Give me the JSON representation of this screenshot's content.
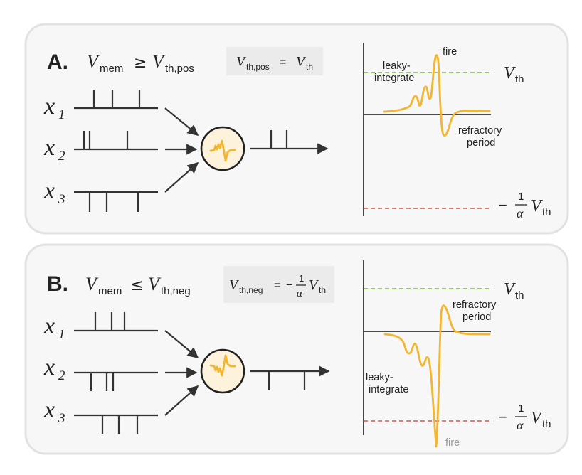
{
  "panel_a": {
    "letter": "A.",
    "condition": {
      "v": "V",
      "v_sub": "mem",
      "op": "≥",
      "rhs": "V",
      "rhs_sub": "th,pos"
    },
    "definition": {
      "lhs": "V",
      "lhs_sub": "th,pos",
      "eq": "=",
      "rhs": "V",
      "rhs_sub": "th"
    },
    "inputs": [
      {
        "var": "x",
        "index": "1"
      },
      {
        "var": "x",
        "index": "2"
      },
      {
        "var": "x",
        "index": "3"
      }
    ],
    "plot": {
      "threshold_label": {
        "v": "V",
        "sub": "th"
      },
      "neg_threshold_label": {
        "minus": "−",
        "num": "1",
        "den": "α",
        "v": "V",
        "sub": "th"
      },
      "annotations": {
        "leaky_1": "leaky-",
        "leaky_2": "integrate",
        "fire": "fire",
        "refractory_1": "refractory",
        "refractory_2": "period"
      }
    }
  },
  "panel_b": {
    "letter": "B.",
    "condition": {
      "v": "V",
      "v_sub": "mem",
      "op": "≤",
      "rhs": "V",
      "rhs_sub": "th,neg"
    },
    "definition": {
      "lhs": "V",
      "lhs_sub": "th,neg",
      "eq": "=",
      "minus": "−",
      "num": "1",
      "den": "α",
      "rhs": "V",
      "rhs_sub": "th"
    },
    "inputs": [
      {
        "var": "x",
        "index": "1"
      },
      {
        "var": "x",
        "index": "2"
      },
      {
        "var": "x",
        "index": "3"
      }
    ],
    "plot": {
      "threshold_label": {
        "v": "V",
        "sub": "th"
      },
      "neg_threshold_label": {
        "minus": "−",
        "num": "1",
        "den": "α",
        "v": "V",
        "sub": "th"
      },
      "annotations": {
        "leaky_1": "leaky-",
        "leaky_2": "integrate",
        "fire": "fire",
        "refractory_1": "refractory",
        "refractory_2": "period"
      }
    }
  },
  "colors": {
    "trace": "#f2b630",
    "positive_threshold": "#8fbf5a",
    "negative_threshold": "#e06a63",
    "neuron_fill": "#fdf2dc",
    "panel_fill": "#f7f7f7"
  }
}
